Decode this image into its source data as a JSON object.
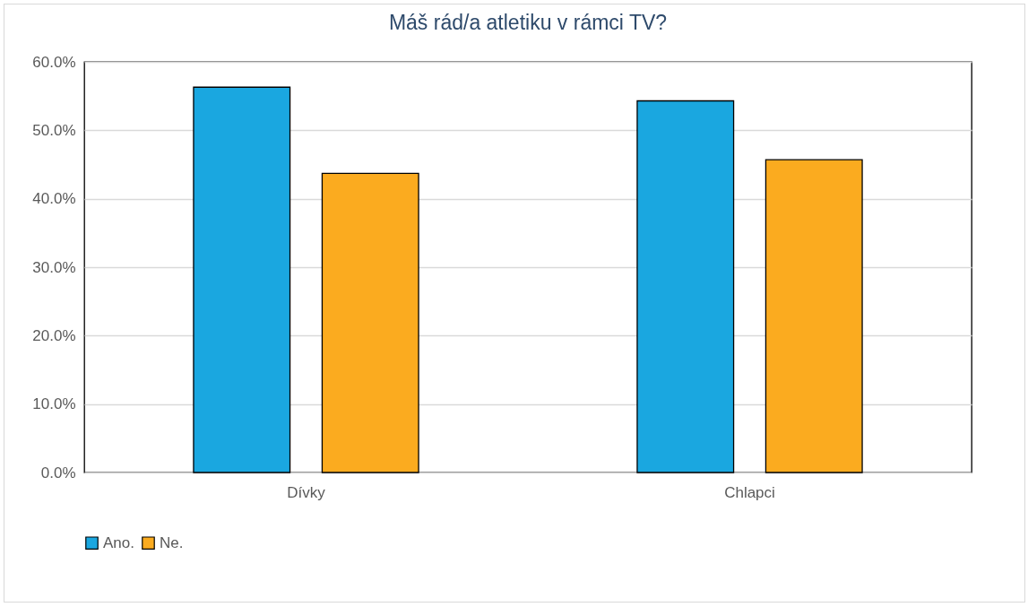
{
  "chart_data": {
    "type": "bar",
    "title": "Máš rád/a atletiku v rámci TV?",
    "categories": [
      "Dívky",
      "Chlapci"
    ],
    "series": [
      {
        "name": "Ano.",
        "color": "#1aa7e0",
        "values": [
          56.3,
          54.3
        ]
      },
      {
        "name": "Ne.",
        "color": "#fbab1f",
        "values": [
          43.7,
          45.7
        ]
      }
    ],
    "ylim": [
      0,
      60
    ],
    "yticks": [
      {
        "value": 0,
        "label": "0.0%"
      },
      {
        "value": 10,
        "label": "10.0%"
      },
      {
        "value": 20,
        "label": "20.0%"
      },
      {
        "value": 30,
        "label": "30.0%"
      },
      {
        "value": 40,
        "label": "40.0%"
      },
      {
        "value": 50,
        "label": "50.0%"
      },
      {
        "value": 60,
        "label": "60.0%"
      }
    ],
    "grid": "y",
    "legend": "bottom"
  }
}
